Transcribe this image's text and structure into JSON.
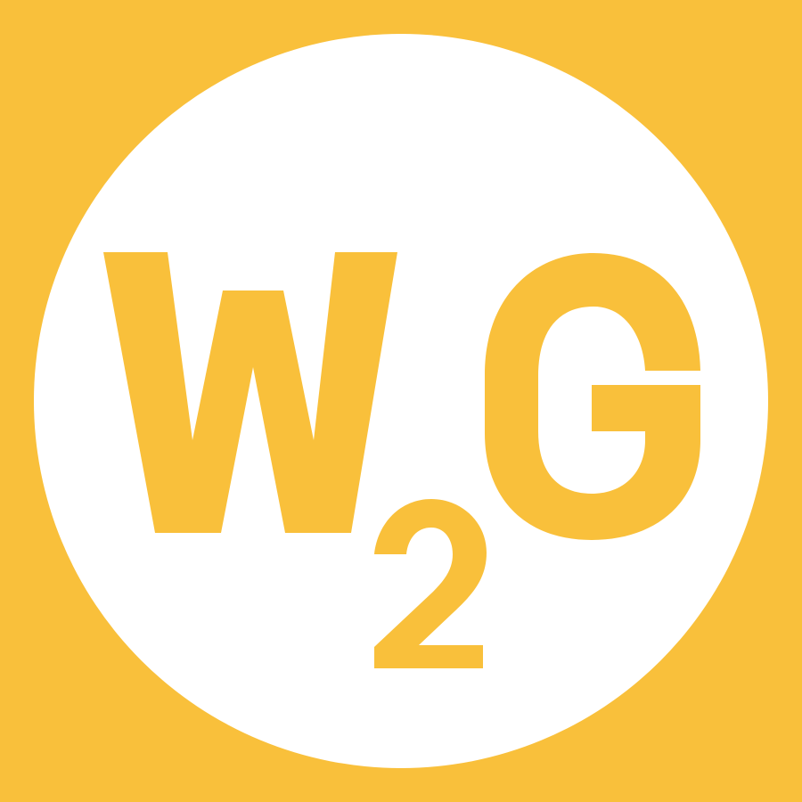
{
  "logo": {
    "letter_w": "W",
    "digit_2": "2",
    "letter_g": "G",
    "colors": {
      "background": "#f9c03b",
      "circle": "#ffffff",
      "glyph": "#f9c03b"
    }
  }
}
